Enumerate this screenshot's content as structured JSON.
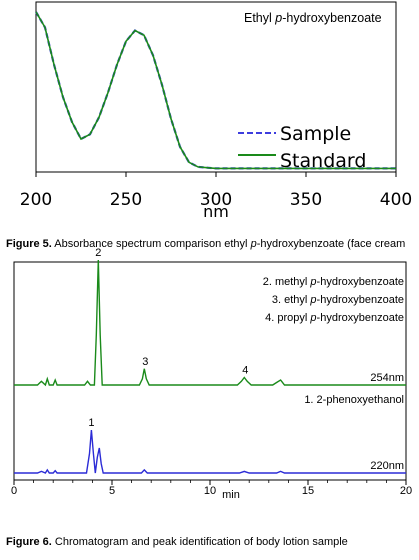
{
  "chart_data": [
    {
      "type": "line",
      "title": "Ethyl p-hydroxybenzoate",
      "title_parts": [
        "Ethyl ",
        "p",
        "-hydroxybenzoate"
      ],
      "xlabel": "nm",
      "xlim": [
        200,
        400
      ],
      "x_ticks": [
        200,
        250,
        300,
        350,
        400
      ],
      "grid": false,
      "legend_position": "bottom-right",
      "series": [
        {
          "name": "Sample",
          "style": "dashed",
          "color": "#3d3dde",
          "x": [
            200,
            205,
            210,
            215,
            220,
            225,
            230,
            235,
            240,
            245,
            250,
            255,
            260,
            265,
            270,
            275,
            280,
            285,
            290,
            295,
            300,
            320,
            350,
            400
          ],
          "y": [
            1.02,
            0.92,
            0.68,
            0.47,
            0.31,
            0.2,
            0.23,
            0.34,
            0.5,
            0.68,
            0.83,
            0.9,
            0.87,
            0.74,
            0.55,
            0.33,
            0.15,
            0.05,
            0.02,
            0.015,
            0.01,
            0.01,
            0.01,
            0.01
          ]
        },
        {
          "name": "Standard",
          "style": "solid",
          "color": "#1a8a1a",
          "x": [
            200,
            205,
            210,
            215,
            220,
            225,
            230,
            235,
            240,
            245,
            250,
            255,
            260,
            265,
            270,
            275,
            280,
            285,
            290,
            295,
            300,
            320,
            350,
            400
          ],
          "y": [
            1.02,
            0.92,
            0.68,
            0.47,
            0.31,
            0.2,
            0.23,
            0.34,
            0.5,
            0.68,
            0.83,
            0.9,
            0.87,
            0.74,
            0.55,
            0.33,
            0.15,
            0.05,
            0.02,
            0.015,
            0.01,
            0.01,
            0.01,
            0.01
          ]
        }
      ]
    },
    {
      "type": "line",
      "xlabel": "min",
      "xlim": [
        0,
        20
      ],
      "x_ticks": [
        0,
        5,
        10,
        15,
        20
      ],
      "grid": false,
      "peak_legend": [
        [
          "2. methyl ",
          "p",
          "-hydroxybenzoate"
        ],
        [
          "3. ethyl ",
          "p",
          "-hydroxybenzoate"
        ],
        [
          "4. propyl ",
          "p",
          "-hydroxybenzoate"
        ],
        [
          "1. 2-phenoxyethanol",
          "",
          ""
        ]
      ],
      "series": [
        {
          "name": "254nm",
          "color": "#1a8a1a",
          "x": [
            0,
            1.2,
            1.4,
            1.6,
            1.7,
            1.8,
            2.0,
            2.1,
            2.2,
            3.6,
            3.75,
            3.9,
            4.1,
            4.2,
            4.3,
            4.4,
            4.5,
            6.4,
            6.55,
            6.65,
            6.75,
            6.9,
            11.4,
            11.6,
            11.75,
            11.9,
            12.1,
            13.2,
            13.4,
            13.6,
            13.8,
            20
          ],
          "y": [
            0,
            0,
            0.03,
            0,
            0.05,
            0,
            0,
            0.04,
            0,
            0,
            0.03,
            0,
            0,
            0.4,
            1.0,
            0.4,
            0,
            0,
            0.05,
            0.13,
            0.05,
            0,
            0,
            0.03,
            0.06,
            0.03,
            0,
            0,
            0.02,
            0.04,
            0,
            0
          ],
          "peak_labels": [
            {
              "label": "2",
              "x": 4.3
            },
            {
              "label": "3",
              "x": 6.7
            },
            {
              "label": "4",
              "x": 11.8
            }
          ]
        },
        {
          "name": "220nm",
          "color": "#2b2bd6",
          "x": [
            0,
            1.2,
            1.4,
            1.6,
            1.7,
            1.8,
            2.0,
            2.1,
            2.2,
            3.7,
            3.85,
            3.95,
            4.05,
            4.15,
            4.25,
            4.35,
            4.45,
            4.55,
            6.5,
            6.65,
            6.8,
            11.5,
            11.75,
            12.0,
            13.4,
            13.6,
            13.8,
            20
          ],
          "y": [
            0,
            0,
            0.02,
            0,
            0.04,
            0,
            0,
            0.03,
            0,
            0,
            0.25,
            0.55,
            0.25,
            0,
            0.2,
            0.32,
            0.12,
            0,
            0,
            0.04,
            0,
            0,
            0.02,
            0,
            0,
            0.02,
            0,
            0
          ],
          "peak_labels": [
            {
              "label": "1",
              "x": 3.95
            }
          ]
        }
      ]
    }
  ],
  "captions": [
    {
      "parts": [
        "Figure 5.",
        " Absorbance spectrum comparison ethyl ",
        "p",
        "-hydroxybenzoate (face cream"
      ]
    },
    {
      "parts": [
        "Figure 6.",
        " Chromatogram and peak identification of body lotion sample",
        "",
        ""
      ]
    }
  ]
}
